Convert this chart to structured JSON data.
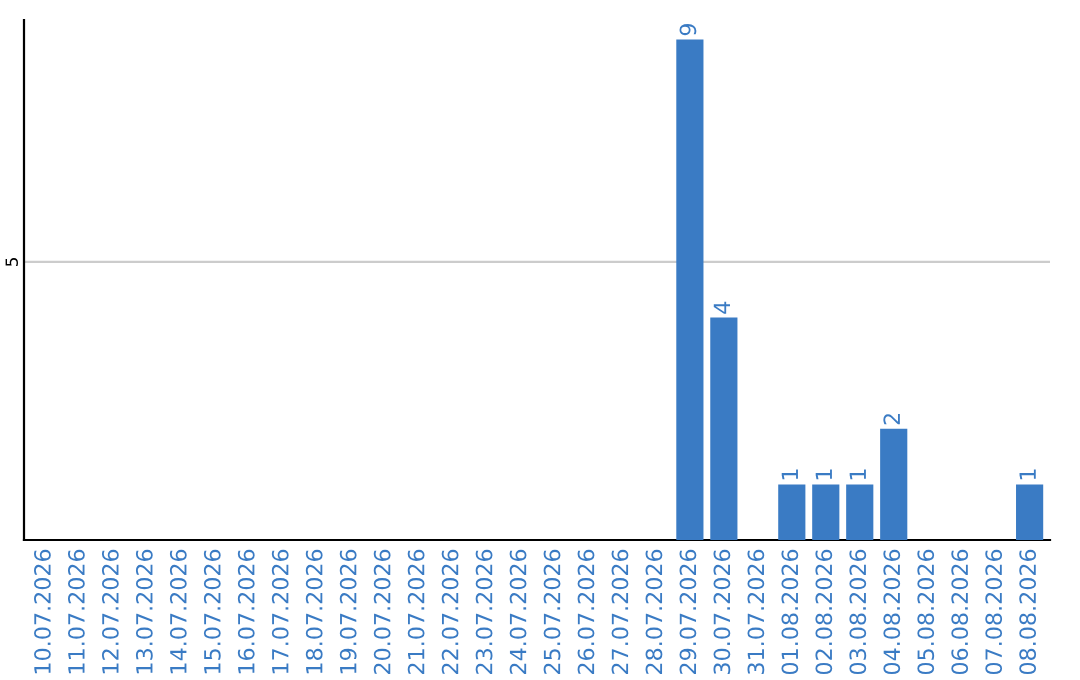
{
  "chart_data": {
    "type": "bar",
    "categories": [
      "10.07.2026",
      "11.07.2026",
      "12.07.2026",
      "13.07.2026",
      "14.07.2026",
      "15.07.2026",
      "16.07.2026",
      "17.07.2026",
      "18.07.2026",
      "19.07.2026",
      "20.07.2026",
      "21.07.2026",
      "22.07.2026",
      "23.07.2026",
      "24.07.2026",
      "25.07.2026",
      "26.07.2026",
      "27.07.2026",
      "28.07.2026",
      "29.07.2026",
      "30.07.2026",
      "31.07.2026",
      "01.08.2026",
      "02.08.2026",
      "03.08.2026",
      "04.08.2026",
      "05.08.2026",
      "06.08.2026",
      "07.08.2026",
      "08.08.2026"
    ],
    "values": [
      null,
      null,
      null,
      null,
      null,
      null,
      null,
      null,
      null,
      null,
      null,
      null,
      null,
      null,
      null,
      null,
      null,
      null,
      null,
      9,
      4,
      null,
      1,
      1,
      1,
      2,
      null,
      null,
      null,
      1
    ],
    "data_labels": true,
    "color": "#3a7bc4",
    "ylim": [
      0,
      9.35
    ],
    "yticks": [
      5
    ],
    "grid": "y"
  }
}
